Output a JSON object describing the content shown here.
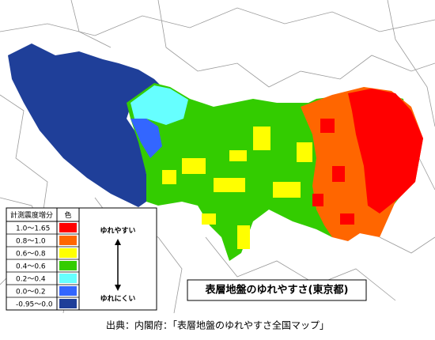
{
  "legend": {
    "header": [
      "計測震度増分",
      "色"
    ],
    "rows": [
      {
        "label": "1.0～1.65",
        "color": "#ff0000"
      },
      {
        "label": "0.8～1.0",
        "color": "#ff6600"
      },
      {
        "label": "0.6～0.8",
        "color": "#ffff00"
      },
      {
        "label": "0.4～0.6",
        "color": "#33cc00"
      },
      {
        "label": "0.2～0.4",
        "color": "#66ffff"
      },
      {
        "label": "0.0～0.2",
        "color": "#3366ff"
      },
      {
        "label": "-0.95～0.0",
        "color": "#1f3f99"
      }
    ],
    "high": "ゆれやすい",
    "low": "ゆれにくい"
  },
  "title": "表層地盤のゆれやすさ(東京都)",
  "caption": "出典：内閣府：「表層地盤のゆれやすさ全国マップ」"
}
